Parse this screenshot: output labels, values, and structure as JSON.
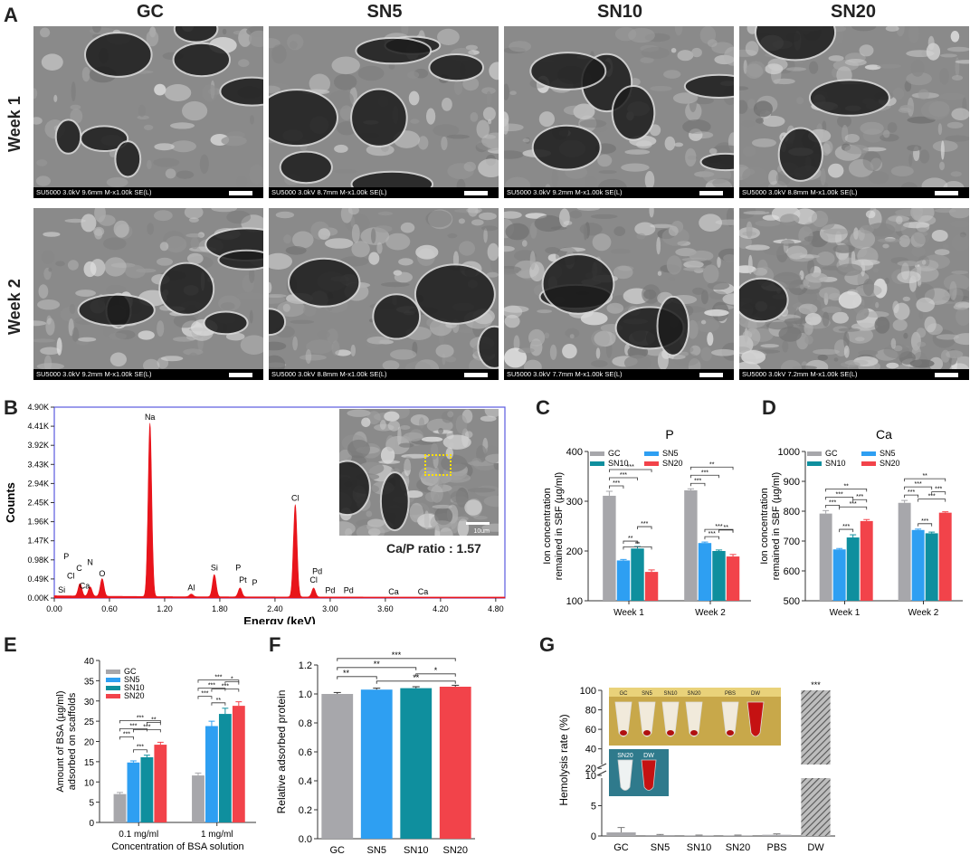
{
  "panel_A": {
    "label": "A",
    "columns": [
      "GC",
      "SN5",
      "SN10",
      "SN20"
    ],
    "rows": [
      "Week 1",
      "Week 2"
    ],
    "captions": [
      [
        "SU5000 3.0kV 9.6mm M-x1.00k SE(L)",
        "SU5000 3.0kV 8.7mm M-x1.00k SE(L)",
        "SU5000 3.0kV 9.2mm M-x1.00k SE(L)",
        "SU5000 3.0kV 8.8mm M-x1.00k SE(L)"
      ],
      [
        "SU5000 3.0kV 9.2mm M-x1.00k SE(L)",
        "SU5000 3.0kV 8.8mm M-x1.00k SE(L)",
        "SU5000 3.0kV 7.7mm M-x1.00k SE(L)",
        "SU5000 3.0kV 7.2mm M-x1.00k SE(L)"
      ]
    ]
  },
  "chart_data": [
    {
      "id": "B",
      "label": "B",
      "type": "line",
      "xlabel": "Energy (keV)",
      "ylabel": "Counts",
      "xticks": [
        "0.00",
        "0.60",
        "1.20",
        "1.80",
        "2.40",
        "3.00",
        "3.60",
        "4.20",
        "4.80"
      ],
      "yticks": [
        "0.00K",
        "0.49K",
        "0.98K",
        "1.47K",
        "1.96K",
        "2.45K",
        "2.94K",
        "3.43K",
        "3.92K",
        "4.41K",
        "4.90K"
      ],
      "xlim": [
        0,
        4.9
      ],
      "ylim": [
        0,
        4900
      ],
      "color": "#e8141b",
      "peaks": [
        {
          "x": 0.28,
          "y": 320
        },
        {
          "x": 0.39,
          "y": 240
        },
        {
          "x": 0.52,
          "y": 450
        },
        {
          "x": 1.04,
          "y": 4450
        },
        {
          "x": 1.49,
          "y": 70
        },
        {
          "x": 1.74,
          "y": 570
        },
        {
          "x": 2.02,
          "y": 230
        },
        {
          "x": 2.62,
          "y": 2370
        },
        {
          "x": 2.82,
          "y": 230
        }
      ],
      "annotations": [
        {
          "text": "Na",
          "x": 1.04,
          "y": 4580
        },
        {
          "text": "Cl",
          "x": 2.62,
          "y": 2500
        },
        {
          "text": "Si",
          "x": 1.74,
          "y": 710
        },
        {
          "text": "P",
          "x": 2.0,
          "y": 710
        },
        {
          "text": "Pt",
          "x": 2.05,
          "y": 390
        },
        {
          "text": "P",
          "x": 2.18,
          "y": 330
        },
        {
          "text": "Pd",
          "x": 2.86,
          "y": 610
        },
        {
          "text": "Cl",
          "x": 2.82,
          "y": 390
        },
        {
          "text": "Pd",
          "x": 3.0,
          "y": 130
        },
        {
          "text": "Pd",
          "x": 3.2,
          "y": 130
        },
        {
          "text": "Al",
          "x": 1.49,
          "y": 200
        },
        {
          "text": "O",
          "x": 0.52,
          "y": 560
        },
        {
          "text": "N",
          "x": 0.39,
          "y": 850
        },
        {
          "text": "C",
          "x": 0.27,
          "y": 700
        },
        {
          "text": "P",
          "x": 0.13,
          "y": 1000
        },
        {
          "text": "Cl",
          "x": 0.18,
          "y": 500
        },
        {
          "text": "Ca",
          "x": 0.33,
          "y": 240
        },
        {
          "text": "Si",
          "x": 0.08,
          "y": 140
        },
        {
          "text": "Ca",
          "x": 3.69,
          "y": 90
        },
        {
          "text": "Ca",
          "x": 4.01,
          "y": 90
        }
      ],
      "inset_label": "Ca/P ratio : 1.57",
      "inset_scale": "10um"
    },
    {
      "id": "C",
      "label": "C",
      "type": "bar",
      "title": "P",
      "ylabel": [
        "Ion concentration",
        "remained in SBF (µg/ml)"
      ],
      "categories": [
        "Week 1",
        "Week 2"
      ],
      "ylim": [
        100,
        400
      ],
      "yticks": [
        100,
        200,
        300,
        400
      ],
      "legend_position": "top",
      "series": [
        {
          "name": "GC",
          "color": "#a7a7ab",
          "values": [
            311,
            322
          ],
          "err": [
            9,
            3
          ]
        },
        {
          "name": "SN5",
          "color": "#2e9ff2",
          "values": [
            181,
            216
          ],
          "err": [
            2,
            2
          ]
        },
        {
          "name": "SN10",
          "color": "#0f8f9e",
          "values": [
            205,
            200
          ],
          "err": [
            4,
            2
          ]
        },
        {
          "name": "SN20",
          "color": "#f2434a",
          "values": [
            158,
            189
          ],
          "err": [
            4,
            4
          ]
        }
      ],
      "sig": [
        {
          "group": 0,
          "a": 0,
          "b": 1,
          "text": "***",
          "level": 0
        },
        {
          "group": 0,
          "a": 0,
          "b": 2,
          "text": "***",
          "level": 1
        },
        {
          "group": 0,
          "a": 0,
          "b": 3,
          "text": "***",
          "level": 2
        },
        {
          "group": 0,
          "a": 1,
          "b": 2,
          "text": "**",
          "level": -1
        },
        {
          "group": 0,
          "a": 1,
          "b": 3,
          "text": "**",
          "level": -2
        },
        {
          "group": 0,
          "a": 2,
          "b": 3,
          "text": "***",
          "level": -3
        },
        {
          "group": 1,
          "a": 0,
          "b": 1,
          "text": "***",
          "level": 0
        },
        {
          "group": 1,
          "a": 0,
          "b": 2,
          "text": "***",
          "level": 1
        },
        {
          "group": 1,
          "a": 0,
          "b": 3,
          "text": "**",
          "level": 2
        },
        {
          "group": 1,
          "a": 1,
          "b": 2,
          "text": "***",
          "level": -1
        },
        {
          "group": 1,
          "a": 1,
          "b": 3,
          "text": "***",
          "level": -2
        },
        {
          "group": 1,
          "a": 2,
          "b": 3,
          "text": "**",
          "level": -3
        }
      ]
    },
    {
      "id": "D",
      "label": "D",
      "type": "bar",
      "title": "Ca",
      "ylabel": [
        "Ion concentration",
        "remained in SBF (µg/ml)"
      ],
      "categories": [
        "Week 1",
        "Week 2"
      ],
      "ylim": [
        500,
        1000
      ],
      "yticks": [
        500,
        600,
        700,
        800,
        900,
        1000
      ],
      "legend_position": "top",
      "series": [
        {
          "name": "GC",
          "color": "#a7a7ab",
          "values": [
            792,
            828
          ],
          "err": [
            10,
            8
          ]
        },
        {
          "name": "SN5",
          "color": "#2e9ff2",
          "values": [
            672,
            737
          ],
          "err": [
            3,
            3
          ]
        },
        {
          "name": "SN10",
          "color": "#0f8f9e",
          "values": [
            712,
            726
          ],
          "err": [
            9,
            4
          ]
        },
        {
          "name": "SN20",
          "color": "#f2434a",
          "values": [
            767,
            795
          ],
          "err": [
            5,
            3
          ]
        }
      ],
      "sig": [
        {
          "group": 0,
          "a": 0,
          "b": 1,
          "text": "***",
          "level": 0
        },
        {
          "group": 0,
          "a": 0,
          "b": 2,
          "text": "***",
          "level": 1
        },
        {
          "group": 0,
          "a": 0,
          "b": 3,
          "text": "**",
          "level": 2
        },
        {
          "group": 0,
          "a": 1,
          "b": 2,
          "text": "***",
          "level": -1
        },
        {
          "group": 0,
          "a": 1,
          "b": 3,
          "text": "***",
          "level": -2
        },
        {
          "group": 0,
          "a": 2,
          "b": 3,
          "text": "***",
          "level": -3
        },
        {
          "group": 1,
          "a": 0,
          "b": 1,
          "text": "***",
          "level": 0
        },
        {
          "group": 1,
          "a": 0,
          "b": 2,
          "text": "***",
          "level": 1
        },
        {
          "group": 1,
          "a": 0,
          "b": 3,
          "text": "**",
          "level": 2
        },
        {
          "group": 1,
          "a": 1,
          "b": 2,
          "text": "***",
          "level": -1
        },
        {
          "group": 1,
          "a": 1,
          "b": 3,
          "text": "***",
          "level": -2
        },
        {
          "group": 1,
          "a": 2,
          "b": 3,
          "text": "***",
          "level": -3
        }
      ]
    },
    {
      "id": "E",
      "label": "E",
      "type": "bar",
      "xlabel": "Concentration of BSA solution",
      "ylabel": [
        "Amount of BSA (µg/ml)",
        "adsorbed on scaffolds"
      ],
      "categories": [
        "0.1 mg/ml",
        "1 mg/ml"
      ],
      "ylim": [
        0,
        40
      ],
      "yticks": [
        0,
        5,
        10,
        15,
        20,
        25,
        30,
        35,
        40
      ],
      "legend_position": "top-left",
      "series": [
        {
          "name": "GC",
          "color": "#a7a7ab",
          "values": [
            7.0,
            11.6
          ],
          "err": [
            0.4,
            0.6
          ]
        },
        {
          "name": "SN5",
          "color": "#2e9ff2",
          "values": [
            14.8,
            23.8
          ],
          "err": [
            0.4,
            1.2
          ]
        },
        {
          "name": "SN10",
          "color": "#0f8f9e",
          "values": [
            16.1,
            26.8
          ],
          "err": [
            0.5,
            1.4
          ]
        },
        {
          "name": "SN20",
          "color": "#f2434a",
          "values": [
            19.2,
            28.8
          ],
          "err": [
            0.6,
            1.0
          ]
        }
      ],
      "sig": [
        {
          "group": 0,
          "a": 0,
          "b": 1,
          "text": "***",
          "level": 0
        },
        {
          "group": 0,
          "a": 0,
          "b": 2,
          "text": "***",
          "level": 1
        },
        {
          "group": 0,
          "a": 0,
          "b": 3,
          "text": "***",
          "level": 2
        },
        {
          "group": 0,
          "a": 1,
          "b": 2,
          "text": "***",
          "level": -1
        },
        {
          "group": 0,
          "a": 1,
          "b": 3,
          "text": "***",
          "level": -2
        },
        {
          "group": 0,
          "a": 2,
          "b": 3,
          "text": "**",
          "level": -3
        },
        {
          "group": 1,
          "a": 0,
          "b": 1,
          "text": "***",
          "level": 0
        },
        {
          "group": 1,
          "a": 0,
          "b": 2,
          "text": "***",
          "level": 1
        },
        {
          "group": 1,
          "a": 0,
          "b": 3,
          "text": "***",
          "level": 2
        },
        {
          "group": 1,
          "a": 1,
          "b": 2,
          "text": "**",
          "level": -1
        },
        {
          "group": 1,
          "a": 1,
          "b": 3,
          "text": "***",
          "level": -2
        },
        {
          "group": 1,
          "a": 2,
          "b": 3,
          "text": "*",
          "level": -3
        }
      ]
    },
    {
      "id": "F",
      "label": "F",
      "type": "bar",
      "ylabel": [
        "Relative adsorbed protein"
      ],
      "categories": [
        "GC",
        "SN5",
        "SN10",
        "SN20"
      ],
      "ylim": [
        0,
        1.2
      ],
      "yticks": [
        "0.0",
        "0.2",
        "0.4",
        "0.6",
        "0.8",
        "1.0",
        "1.2"
      ],
      "colors": [
        "#a7a7ab",
        "#2e9ff2",
        "#0f8f9e",
        "#f2434a"
      ],
      "values": [
        1.0,
        1.03,
        1.04,
        1.05
      ],
      "err": [
        0.01,
        0.01,
        0.01,
        0.01
      ],
      "sig": [
        {
          "a": 0,
          "b": 1,
          "text": "**",
          "level": 0
        },
        {
          "a": 0,
          "b": 2,
          "text": "**",
          "level": 1
        },
        {
          "a": 0,
          "b": 3,
          "text": "***",
          "level": 2
        },
        {
          "a": 1,
          "b": 3,
          "text": "**",
          "level": -1
        },
        {
          "a": 2,
          "b": 3,
          "text": "*",
          "level": -2
        }
      ]
    },
    {
      "id": "G",
      "label": "G",
      "type": "bar",
      "ylabel": [
        "Hemolysis rate (%)"
      ],
      "categories": [
        "GC",
        "SN5",
        "SN10",
        "SN20",
        "PBS",
        "DW"
      ],
      "yticks_lower": [
        0,
        5,
        10
      ],
      "yticks_upper": [
        20,
        40,
        60,
        80,
        100
      ],
      "values": [
        0.6,
        0.15,
        0.1,
        0.1,
        0.2,
        100
      ],
      "err": [
        0.8,
        0.1,
        0.05,
        0.05,
        0.15,
        0.5
      ],
      "sig": [
        {
          "index": 5,
          "text": "***"
        }
      ],
      "inset_tubes": [
        "GC",
        "SN5",
        "SN10",
        "SN20",
        "PBS",
        "DW"
      ],
      "inset_small": [
        "SN20",
        "DW"
      ]
    }
  ]
}
